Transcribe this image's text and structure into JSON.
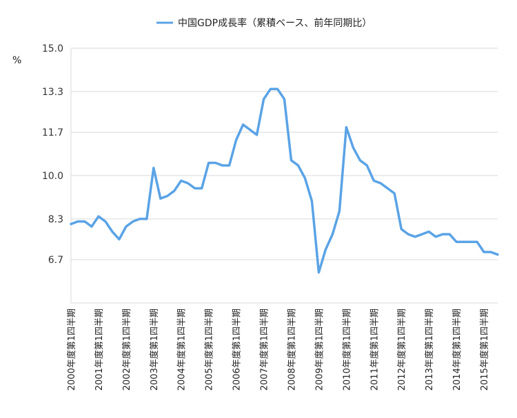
{
  "chart_data": {
    "type": "line",
    "legend": "top",
    "grid": true,
    "ylabel": "%",
    "ylim": [
      5.0,
      15.0
    ],
    "yticks": [
      {
        "label": "15.0",
        "value": 15.0
      },
      {
        "label": "13.3",
        "value": 13.3
      },
      {
        "label": "11.7",
        "value": 11.7
      },
      {
        "label": "10.0",
        "value": 10.0
      },
      {
        "label": "8.3",
        "value": 8.3
      },
      {
        "label": "6.7",
        "value": 6.7
      }
    ],
    "xticks": [
      "2000年度第1四半期",
      "2001年度第1四半期",
      "2002年度第1四半期",
      "2003年度第1四半期",
      "2004年度第1四半期",
      "2005年度第1四半期",
      "2006年度第1四半期",
      "2007年度第1四半期",
      "2008年度第1四半期",
      "2009年度第1四半期",
      "2010年度第1四半期",
      "2011年度第1四半期",
      "2012年度第1四半期",
      "2013年度第1四半期",
      "2014年度第1四半期",
      "2015年度第1四半期"
    ],
    "series": [
      {
        "name": "中国GDP成長率（累積ベース、前年同期比）",
        "color": "#5aa3e6",
        "values": [
          8.1,
          8.2,
          8.2,
          8.0,
          8.4,
          8.2,
          7.8,
          7.5,
          8.0,
          8.2,
          8.3,
          8.3,
          10.3,
          9.1,
          9.2,
          9.4,
          9.8,
          9.7,
          9.5,
          9.5,
          10.5,
          10.5,
          10.4,
          10.4,
          11.4,
          12.0,
          11.8,
          11.6,
          13.0,
          13.4,
          13.4,
          13.0,
          10.6,
          10.4,
          9.9,
          9.0,
          6.2,
          7.1,
          7.7,
          8.6,
          11.9,
          11.1,
          10.6,
          10.4,
          9.8,
          9.7,
          9.5,
          9.3,
          7.9,
          7.7,
          7.6,
          7.7,
          7.8,
          7.6,
          7.7,
          7.7,
          7.4,
          7.4,
          7.4,
          7.4,
          7.0,
          7.0,
          6.9
        ]
      }
    ]
  }
}
